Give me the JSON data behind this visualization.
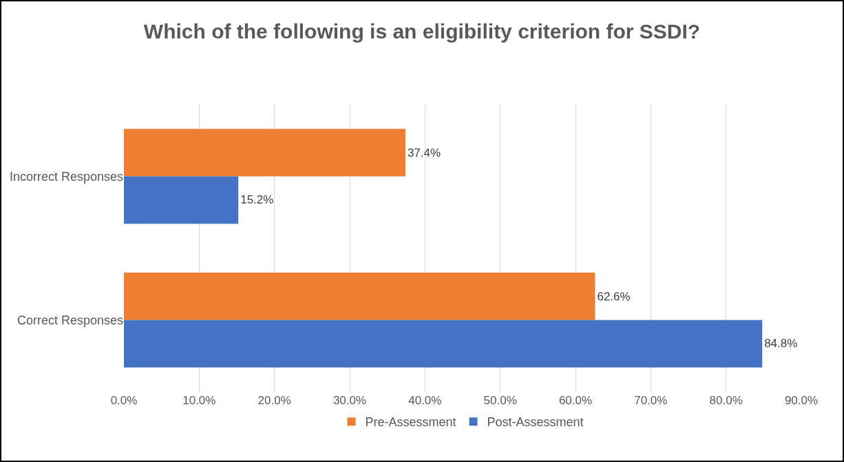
{
  "chart_data": {
    "type": "bar",
    "orientation": "horizontal",
    "title": "Which of the following is an eligibility criterion for SSDI?",
    "categories": [
      "Incorrect Responses",
      "Correct Responses"
    ],
    "series": [
      {
        "name": "Pre-Assessment",
        "color": "#ed7d31",
        "values": [
          37.4,
          62.6
        ],
        "value_labels": [
          "37.4%",
          "62.6%"
        ]
      },
      {
        "name": "Post-Assessment",
        "color": "#4472c4",
        "values": [
          15.2,
          84.8
        ],
        "value_labels": [
          "15.2%",
          "84.8%"
        ]
      }
    ],
    "xlim": [
      0,
      90
    ],
    "xticks": [
      {
        "value": 0,
        "label": "0.0%"
      },
      {
        "value": 10,
        "label": "10.0%"
      },
      {
        "value": 20,
        "label": "20.0%"
      },
      {
        "value": 30,
        "label": "30.0%"
      },
      {
        "value": 40,
        "label": "40.0%"
      },
      {
        "value": 50,
        "label": "50.0%"
      },
      {
        "value": 60,
        "label": "60.0%"
      },
      {
        "value": 70,
        "label": "70.0%"
      },
      {
        "value": 80,
        "label": "80.0%"
      },
      {
        "value": 90,
        "label": "90.0%"
      }
    ],
    "grid": "x",
    "legend": "bottom"
  }
}
